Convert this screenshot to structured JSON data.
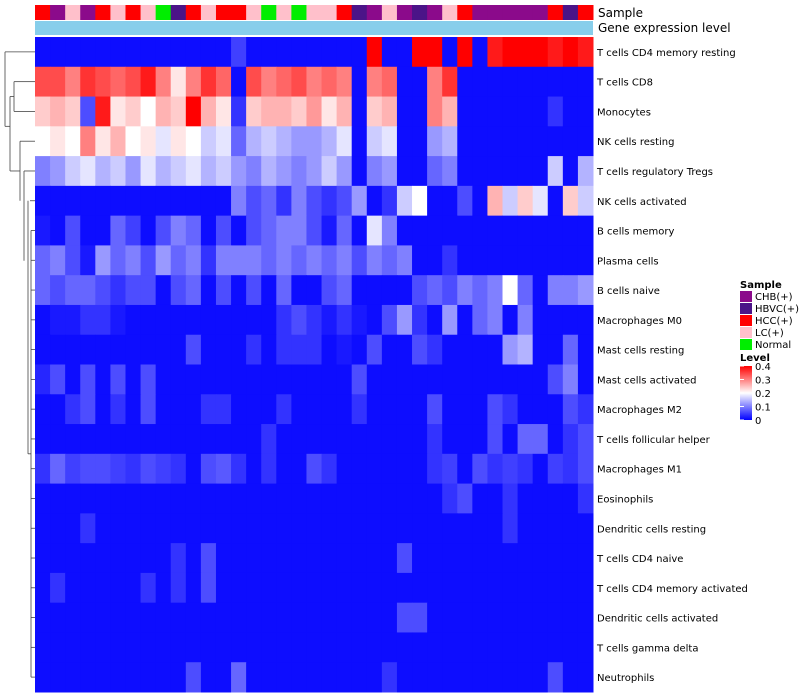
{
  "chart_data": {
    "type": "heatmap",
    "title": "",
    "annotation_tracks": [
      "Sample",
      "Gene expression level"
    ],
    "rows": [
      "T cells CD4 memory resting",
      "T cells CD8",
      "Monocytes",
      "NK cells resting",
      "T cells regulatory  Tregs",
      "NK cells activated",
      "B cells memory",
      "Plasma cells",
      "B cells naive",
      "Macrophages M0",
      "Mast cells resting",
      "Mast cells activated",
      "Macrophages M2",
      "T cells follicular helper",
      "Macrophages M1",
      "Eosinophils",
      "Dendritic cells resting",
      "T cells CD4 naive",
      "T cells CD4 memory activated",
      "Dendritic cells activated",
      "T cells gamma delta",
      "Neutrophils"
    ],
    "sample_groups": [
      "HCC(+)",
      "CHB(+)",
      "LC(+)",
      "CHB(+)",
      "HCC(+)",
      "LC(+)",
      "HCC(+)",
      "LC(+)",
      "Normal",
      "HBVC(+)",
      "HCC(+)",
      "LC(+)",
      "HCC(+)",
      "HCC(+)",
      "LC(+)",
      "Normal",
      "LC(+)",
      "Normal",
      "LC(+)",
      "LC(+)",
      "HCC(+)",
      "HBVC(+)",
      "CHB(+)",
      "LC(+)",
      "CHB(+)",
      "HBVC(+)",
      "CHB(+)",
      "LC(+)",
      "HCC(+)",
      "CHB(+)",
      "CHB(+)",
      "CHB(+)",
      "CHB(+)",
      "CHB(+)",
      "HCC(+)",
      "HBVC(+)",
      "HCC(+)"
    ],
    "values": [
      [
        0.01,
        0.01,
        0.01,
        0.01,
        0.01,
        0.01,
        0.01,
        0.01,
        0.01,
        0.01,
        0.01,
        0.01,
        0.01,
        0.05,
        0.01,
        0.01,
        0.01,
        0.01,
        0.01,
        0.01,
        0.01,
        0.01,
        0.4,
        0.01,
        0.01,
        0.4,
        0.4,
        0.01,
        0.4,
        0.01,
        0.38,
        0.4,
        0.4,
        0.4,
        0.38,
        0.4,
        0.38
      ],
      [
        0.34,
        0.34,
        0.3,
        0.36,
        0.34,
        0.32,
        0.34,
        0.38,
        0.3,
        0.22,
        0.3,
        0.36,
        0.32,
        0.01,
        0.34,
        0.3,
        0.32,
        0.34,
        0.3,
        0.32,
        0.3,
        0.01,
        0.3,
        0.32,
        0.01,
        0.01,
        0.3,
        0.36,
        0.01,
        0.01,
        0.01,
        0.01,
        0.01,
        0.01,
        0.01,
        0.01,
        0.01
      ],
      [
        0.24,
        0.26,
        0.24,
        0.06,
        0.38,
        0.22,
        0.24,
        0.2,
        0.26,
        0.24,
        0.4,
        0.26,
        0.22,
        0.04,
        0.24,
        0.26,
        0.26,
        0.24,
        0.28,
        0.22,
        0.26,
        0.01,
        0.24,
        0.26,
        0.01,
        0.01,
        0.3,
        0.26,
        0.01,
        0.01,
        0.01,
        0.01,
        0.01,
        0.01,
        0.04,
        0.01,
        0.01
      ],
      [
        0.2,
        0.22,
        0.2,
        0.3,
        0.22,
        0.26,
        0.2,
        0.22,
        0.18,
        0.22,
        0.2,
        0.16,
        0.18,
        0.08,
        0.14,
        0.16,
        0.14,
        0.12,
        0.12,
        0.14,
        0.18,
        0.01,
        0.16,
        0.18,
        0.01,
        0.01,
        0.12,
        0.14,
        0.01,
        0.01,
        0.01,
        0.01,
        0.01,
        0.01,
        0.01,
        0.01,
        0.01
      ],
      [
        0.1,
        0.12,
        0.16,
        0.18,
        0.14,
        0.16,
        0.12,
        0.18,
        0.14,
        0.16,
        0.18,
        0.14,
        0.16,
        0.12,
        0.1,
        0.14,
        0.12,
        0.1,
        0.12,
        0.16,
        0.12,
        0.01,
        0.1,
        0.12,
        0.01,
        0.01,
        0.08,
        0.1,
        0.01,
        0.01,
        0.01,
        0.01,
        0.01,
        0.01,
        0.16,
        0.01,
        0.14
      ],
      [
        0.01,
        0.01,
        0.01,
        0.01,
        0.01,
        0.01,
        0.01,
        0.01,
        0.01,
        0.01,
        0.01,
        0.01,
        0.01,
        0.1,
        0.06,
        0.08,
        0.04,
        0.1,
        0.06,
        0.04,
        0.06,
        0.12,
        0.01,
        0.04,
        0.16,
        0.2,
        0.01,
        0.01,
        0.06,
        0.01,
        0.26,
        0.16,
        0.24,
        0.18,
        0.01,
        0.24,
        0.16
      ],
      [
        0.02,
        0.01,
        0.06,
        0.01,
        0.01,
        0.08,
        0.05,
        0.01,
        0.06,
        0.1,
        0.08,
        0.01,
        0.06,
        0.01,
        0.06,
        0.08,
        0.1,
        0.1,
        0.06,
        0.02,
        0.08,
        0.01,
        0.18,
        0.1,
        0.01,
        0.01,
        0.01,
        0.01,
        0.01,
        0.01,
        0.01,
        0.01,
        0.01,
        0.01,
        0.01,
        0.01,
        0.01
      ],
      [
        0.08,
        0.1,
        0.06,
        0.02,
        0.12,
        0.08,
        0.1,
        0.06,
        0.12,
        0.08,
        0.1,
        0.04,
        0.1,
        0.1,
        0.1,
        0.08,
        0.1,
        0.08,
        0.1,
        0.08,
        0.1,
        0.06,
        0.1,
        0.08,
        0.1,
        0.01,
        0.01,
        0.04,
        0.01,
        0.01,
        0.01,
        0.01,
        0.01,
        0.01,
        0.01,
        0.01,
        0.01
      ],
      [
        0.08,
        0.06,
        0.08,
        0.08,
        0.06,
        0.04,
        0.06,
        0.06,
        0.01,
        0.06,
        0.08,
        0.01,
        0.06,
        0.01,
        0.06,
        0.01,
        0.08,
        0.01,
        0.01,
        0.06,
        0.08,
        0.01,
        0.01,
        0.01,
        0.01,
        0.06,
        0.08,
        0.06,
        0.1,
        0.08,
        0.1,
        0.2,
        0.08,
        0.01,
        0.1,
        0.1,
        0.12
      ],
      [
        0.01,
        0.02,
        0.02,
        0.04,
        0.04,
        0.02,
        0.01,
        0.01,
        0.01,
        0.01,
        0.01,
        0.01,
        0.01,
        0.01,
        0.01,
        0.01,
        0.04,
        0.06,
        0.04,
        0.02,
        0.04,
        0.02,
        0.01,
        0.06,
        0.12,
        0.04,
        0.01,
        0.12,
        0.01,
        0.08,
        0.1,
        0.01,
        0.1,
        0.01,
        0.01,
        0.01,
        0.01
      ],
      [
        0.01,
        0.01,
        0.01,
        0.01,
        0.01,
        0.01,
        0.01,
        0.01,
        0.01,
        0.01,
        0.06,
        0.01,
        0.01,
        0.01,
        0.04,
        0.01,
        0.04,
        0.04,
        0.04,
        0.01,
        0.02,
        0.01,
        0.06,
        0.01,
        0.01,
        0.06,
        0.04,
        0.01,
        0.01,
        0.01,
        0.01,
        0.12,
        0.14,
        0.01,
        0.01,
        0.08,
        0.01
      ],
      [
        0.03,
        0.06,
        0.01,
        0.06,
        0.01,
        0.06,
        0.01,
        0.06,
        0.01,
        0.01,
        0.01,
        0.01,
        0.01,
        0.01,
        0.01,
        0.01,
        0.01,
        0.01,
        0.01,
        0.01,
        0.01,
        0.06,
        0.01,
        0.01,
        0.01,
        0.01,
        0.01,
        0.01,
        0.01,
        0.01,
        0.01,
        0.01,
        0.01,
        0.01,
        0.06,
        0.1,
        0.01
      ],
      [
        0.01,
        0.01,
        0.04,
        0.06,
        0.01,
        0.04,
        0.01,
        0.06,
        0.01,
        0.01,
        0.01,
        0.04,
        0.04,
        0.01,
        0.01,
        0.01,
        0.04,
        0.01,
        0.01,
        0.01,
        0.01,
        0.04,
        0.01,
        0.01,
        0.01,
        0.01,
        0.06,
        0.01,
        0.01,
        0.01,
        0.06,
        0.04,
        0.01,
        0.01,
        0.01,
        0.06,
        0.04
      ],
      [
        0.01,
        0.01,
        0.01,
        0.01,
        0.01,
        0.01,
        0.01,
        0.01,
        0.01,
        0.01,
        0.01,
        0.01,
        0.01,
        0.01,
        0.01,
        0.04,
        0.01,
        0.01,
        0.01,
        0.01,
        0.01,
        0.01,
        0.01,
        0.01,
        0.01,
        0.01,
        0.04,
        0.01,
        0.01,
        0.01,
        0.06,
        0.01,
        0.08,
        0.08,
        0.01,
        0.04,
        0.06
      ],
      [
        0.04,
        0.08,
        0.05,
        0.06,
        0.06,
        0.05,
        0.04,
        0.06,
        0.05,
        0.04,
        0.01,
        0.06,
        0.07,
        0.04,
        0.01,
        0.04,
        0.01,
        0.01,
        0.06,
        0.04,
        0.01,
        0.01,
        0.01,
        0.01,
        0.01,
        0.01,
        0.04,
        0.05,
        0.01,
        0.06,
        0.04,
        0.05,
        0.04,
        0.01,
        0.05,
        0.04,
        0.06
      ],
      [
        0.01,
        0.01,
        0.01,
        0.01,
        0.01,
        0.01,
        0.01,
        0.01,
        0.01,
        0.01,
        0.01,
        0.01,
        0.01,
        0.01,
        0.01,
        0.01,
        0.01,
        0.01,
        0.01,
        0.01,
        0.01,
        0.01,
        0.01,
        0.01,
        0.01,
        0.01,
        0.01,
        0.04,
        0.06,
        0.01,
        0.01,
        0.04,
        0.01,
        0.01,
        0.01,
        0.01,
        0.04
      ],
      [
        0.01,
        0.01,
        0.01,
        0.04,
        0.01,
        0.01,
        0.01,
        0.01,
        0.01,
        0.01,
        0.01,
        0.01,
        0.01,
        0.01,
        0.01,
        0.01,
        0.01,
        0.01,
        0.01,
        0.01,
        0.01,
        0.01,
        0.01,
        0.01,
        0.01,
        0.01,
        0.01,
        0.01,
        0.01,
        0.01,
        0.01,
        0.04,
        0.01,
        0.01,
        0.01,
        0.01,
        0.01
      ],
      [
        0.01,
        0.01,
        0.01,
        0.01,
        0.01,
        0.01,
        0.01,
        0.01,
        0.01,
        0.04,
        0.01,
        0.06,
        0.01,
        0.01,
        0.01,
        0.01,
        0.01,
        0.01,
        0.01,
        0.01,
        0.01,
        0.01,
        0.01,
        0.01,
        0.06,
        0.01,
        0.01,
        0.01,
        0.01,
        0.01,
        0.01,
        0.01,
        0.01,
        0.01,
        0.01,
        0.01,
        0.01
      ],
      [
        0.01,
        0.04,
        0.01,
        0.01,
        0.01,
        0.01,
        0.01,
        0.04,
        0.01,
        0.04,
        0.01,
        0.06,
        0.01,
        0.01,
        0.01,
        0.01,
        0.01,
        0.01,
        0.01,
        0.01,
        0.01,
        0.01,
        0.01,
        0.01,
        0.01,
        0.01,
        0.01,
        0.01,
        0.01,
        0.01,
        0.01,
        0.01,
        0.01,
        0.01,
        0.01,
        0.01,
        0.01
      ],
      [
        0.01,
        0.01,
        0.01,
        0.01,
        0.01,
        0.01,
        0.01,
        0.01,
        0.01,
        0.01,
        0.01,
        0.01,
        0.01,
        0.01,
        0.01,
        0.01,
        0.01,
        0.01,
        0.01,
        0.01,
        0.01,
        0.01,
        0.01,
        0.01,
        0.06,
        0.06,
        0.01,
        0.01,
        0.01,
        0.01,
        0.01,
        0.01,
        0.01,
        0.01,
        0.01,
        0.01,
        0.01
      ],
      [
        0.01,
        0.01,
        0.01,
        0.01,
        0.01,
        0.01,
        0.01,
        0.01,
        0.01,
        0.01,
        0.01,
        0.01,
        0.01,
        0.01,
        0.01,
        0.01,
        0.01,
        0.01,
        0.01,
        0.01,
        0.01,
        0.01,
        0.01,
        0.01,
        0.01,
        0.01,
        0.01,
        0.01,
        0.01,
        0.01,
        0.01,
        0.01,
        0.01,
        0.01,
        0.01,
        0.01,
        0.01
      ],
      [
        0.01,
        0.01,
        0.01,
        0.01,
        0.01,
        0.01,
        0.01,
        0.01,
        0.01,
        0.01,
        0.06,
        0.01,
        0.01,
        0.08,
        0.01,
        0.01,
        0.01,
        0.01,
        0.01,
        0.01,
        0.01,
        0.01,
        0.01,
        0.04,
        0.01,
        0.01,
        0.01,
        0.01,
        0.01,
        0.01,
        0.01,
        0.01,
        0.01,
        0.01,
        0.06,
        0.01,
        0.01
      ]
    ],
    "color_scale": {
      "min": 0,
      "mid": 0.2,
      "max": 0.4,
      "low_color": "#0000ff",
      "mid_color": "#ffffff",
      "high_color": "#ff0000"
    },
    "legend_sample": {
      "title": "Sample",
      "entries": [
        {
          "label": "CHB(+)",
          "color": "#8b0a8b"
        },
        {
          "label": "HBVC(+)",
          "color": "#4b1488"
        },
        {
          "label": "HCC(+)",
          "color": "#ff0000"
        },
        {
          "label": "LC(+)",
          "color": "#ffc0cb"
        },
        {
          "label": "Normal",
          "color": "#00ee00"
        }
      ]
    },
    "legend_level": {
      "title": "Level",
      "ticks": [
        "0.4",
        "0.3",
        "0.2",
        "0.1",
        "0"
      ]
    },
    "expression_bar_color": "#87ceeb"
  }
}
